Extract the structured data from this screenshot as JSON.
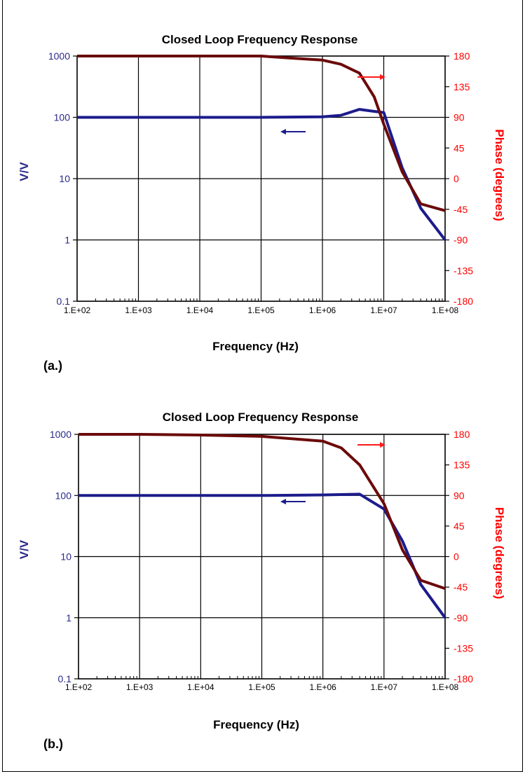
{
  "colors": {
    "gain_line": "#1c1c8c",
    "phase_line": "#6b0a0a",
    "left_axis_text": "#2a2a8a",
    "right_axis_text": "#ff0000",
    "gain_arrow": "#1c1c8c",
    "phase_arrow": "#ff1a1a",
    "grid": "#000000"
  },
  "chart_data": [
    {
      "type": "line",
      "panel_label": "(a.)",
      "title": "Closed Loop  Frequency Response",
      "xlabel": "Frequency (Hz)",
      "ylabel_left": "V/V",
      "ylabel_right": "Phase (degrees)",
      "x_scale": "log",
      "y_left_scale": "log",
      "xlim": [
        100,
        100000000
      ],
      "ylim_left": [
        0.1,
        1000
      ],
      "ylim_right": [
        -180,
        180
      ],
      "x_tick_labels": [
        "1.E+02",
        "1.E+03",
        "1.E+04",
        "1.E+05",
        "1.E+06",
        "1.E+07",
        "1.E+08"
      ],
      "y_left_tick_labels": [
        "1000",
        "100",
        "10",
        "1",
        "0.1"
      ],
      "y_right_tick_labels": [
        "180",
        "135",
        "90",
        "45",
        "0",
        "-45",
        "-90",
        "-135",
        "-180"
      ],
      "grid": true,
      "series": [
        {
          "axis": "left",
          "x": [
            100,
            1000,
            10000,
            100000,
            1000000,
            2000000,
            4000000,
            7000000,
            10000000,
            20000000,
            40000000,
            100000000
          ],
          "y": [
            100,
            100,
            100,
            100,
            102,
            108,
            135,
            125,
            120,
            15,
            3.3,
            1
          ]
        },
        {
          "axis": "right",
          "x": [
            100,
            1000,
            10000,
            100000,
            300000,
            1000000,
            2000000,
            4000000,
            7000000,
            10000000,
            20000000,
            40000000,
            100000000
          ],
          "y": [
            180,
            180,
            180,
            180,
            177,
            174,
            168,
            155,
            120,
            80,
            10,
            -37,
            -47
          ]
        }
      ]
    },
    {
      "type": "line",
      "panel_label": "(b.)",
      "title": "Closed Loop  Frequency Response",
      "xlabel": "Frequency (Hz)",
      "ylabel_left": "V/V",
      "ylabel_right": "Phase (degrees)",
      "x_scale": "log",
      "y_left_scale": "log",
      "xlim": [
        100,
        100000000
      ],
      "ylim_left": [
        0.1,
        1000
      ],
      "ylim_right": [
        -180,
        180
      ],
      "x_tick_labels": [
        "1.E+02",
        "1.E+03",
        "1.E+04",
        "1.E+05",
        "1.E+06",
        "1.E+07",
        "1.E+08"
      ],
      "y_left_tick_labels": [
        "1000",
        "100",
        "10",
        "1",
        "0.1"
      ],
      "y_right_tick_labels": [
        "180",
        "135",
        "90",
        "45",
        "0",
        "-45",
        "-90",
        "-135",
        "-180"
      ],
      "grid": true,
      "series": [
        {
          "axis": "left",
          "x": [
            100,
            1000,
            10000,
            100000,
            1000000,
            4000000,
            10000000,
            20000000,
            40000000,
            100000000
          ],
          "y": [
            100,
            100,
            100,
            100,
            102,
            105,
            60,
            18,
            3.5,
            1
          ]
        },
        {
          "axis": "right",
          "x": [
            100,
            1000,
            10000,
            100000,
            1000000,
            2000000,
            4000000,
            10000000,
            20000000,
            40000000,
            100000000
          ],
          "y": [
            180,
            180,
            179,
            177,
            170,
            160,
            135,
            78,
            10,
            -35,
            -47
          ]
        }
      ]
    }
  ]
}
